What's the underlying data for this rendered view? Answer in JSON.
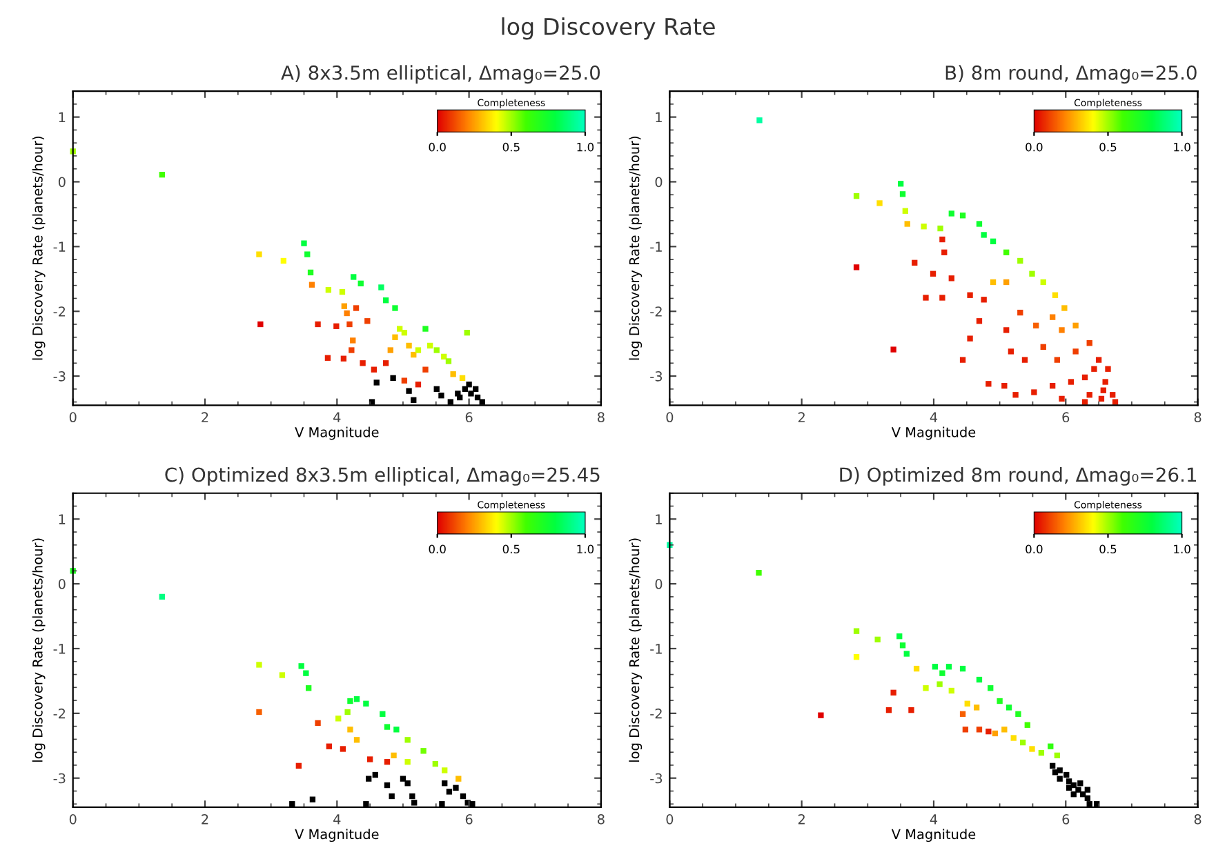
{
  "chart_data": [
    {
      "type": "scatter",
      "title": "A) 8x3.5m elliptical, Δmag₀=25.0",
      "annotations": [
        "log Discovery Rate"
      ],
      "xlabel": "V Magnitude",
      "ylabel": "log Discovery Rate (planets/hour)",
      "clabel": "Completeness",
      "clim": [
        0,
        1
      ],
      "cticks": [
        {
          "value": 0,
          "label": "0.0"
        },
        {
          "value": 0.5,
          "label": "0.5"
        },
        {
          "value": 1,
          "label": "1.0"
        }
      ],
      "xlim": [
        0,
        8
      ],
      "ylim": [
        -3.45,
        1.4
      ],
      "xticks": [
        0,
        2,
        4,
        6,
        8
      ],
      "yticks": [
        -3,
        -2,
        -1,
        0,
        1
      ],
      "grid": false,
      "marker": "square",
      "series": [
        {
          "x": [
            0,
            1.35,
            2.82,
            3.19,
            3.5,
            3.55,
            3.6,
            3.62,
            2.84,
            3.87,
            4.08,
            4.25,
            4.36,
            4.67,
            4.74,
            4.88,
            4.11,
            4.15,
            4.29,
            4.46,
            3.71,
            3.99,
            4.19,
            4.24,
            3.86,
            4.1,
            4.22,
            4.39,
            4.56,
            4.74,
            4.81,
            4.88,
            4.95,
            5.02,
            5.09,
            5.16,
            5.23,
            5.34,
            5.41,
            5.51,
            5.62,
            5.69,
            5.76,
            5.9,
            5.97,
            5.02,
            5.34,
            5.23,
            4.6,
            4.53,
            4.85,
            5.09,
            5.16,
            5.51,
            5.72,
            5.83,
            5.94,
            6.0,
            6.03,
            6.1,
            6.13,
            6.2,
            5.86,
            5.58
          ],
          "values": [
            0.47,
            0.11,
            -1.12,
            -1.22,
            -0.95,
            -1.12,
            -1.4,
            -1.59,
            -2.2,
            -1.67,
            -1.7,
            -1.47,
            -1.57,
            -1.63,
            -1.83,
            -1.95,
            -1.92,
            -2.03,
            -1.95,
            -2.15,
            -2.2,
            -2.23,
            -2.2,
            -2.45,
            -2.72,
            -2.73,
            -2.6,
            -2.8,
            -2.9,
            -2.8,
            -2.6,
            -2.4,
            -2.27,
            -2.33,
            -2.53,
            -2.67,
            -2.6,
            -2.27,
            -2.53,
            -2.6,
            -2.7,
            -2.77,
            -2.97,
            -3.03,
            -2.33,
            -3.07,
            -2.9,
            -3.13,
            -3.1,
            -3.4,
            -3.03,
            -3.23,
            -3.37,
            -3.2,
            -3.4,
            -3.27,
            -3.2,
            -3.13,
            -3.27,
            -3.2,
            -3.33,
            -3.4,
            -3.33,
            -3.3
          ],
          "cvalues": [
            0.5,
            0.6,
            0.35,
            0.4,
            0.8,
            0.75,
            0.7,
            0.2,
            0.0,
            0.45,
            0.45,
            0.8,
            0.75,
            0.85,
            0.8,
            0.75,
            0.25,
            0.2,
            0.1,
            0.1,
            0.05,
            0.05,
            0.1,
            0.2,
            0.05,
            0.05,
            0.1,
            0.05,
            0.05,
            0.05,
            0.25,
            0.3,
            0.45,
            0.45,
            0.3,
            0.3,
            0.45,
            0.7,
            0.45,
            0.5,
            0.45,
            0.5,
            0.3,
            0.35,
            0.5,
            0.1,
            0.1,
            0.05,
            null,
            null,
            null,
            null,
            null,
            null,
            null,
            null,
            null,
            null,
            null,
            null,
            null,
            null,
            null,
            null
          ]
        }
      ]
    },
    {
      "type": "scatter",
      "title": "B) 8m round, Δmag₀=25.0",
      "xlabel": "V Magnitude",
      "ylabel": "log Discovery Rate (planets/hour)",
      "clabel": "Completeness",
      "clim": [
        0,
        1
      ],
      "cticks": [
        {
          "value": 0,
          "label": "0.0"
        },
        {
          "value": 0.5,
          "label": "0.5"
        },
        {
          "value": 1,
          "label": "1.0"
        }
      ],
      "xlim": [
        0,
        8
      ],
      "ylim": [
        -3.45,
        1.4
      ],
      "xticks": [
        0,
        2,
        4,
        6,
        8
      ],
      "yticks": [
        -3,
        -2,
        -1,
        0,
        1
      ],
      "grid": false,
      "marker": "square",
      "series": [
        {
          "x": [
            1.36,
            2.83,
            3.18,
            3.5,
            3.53,
            3.57,
            3.6,
            3.85,
            4.1,
            4.27,
            4.44,
            4.69,
            4.76,
            4.9,
            5.1,
            5.31,
            5.49,
            5.66,
            5.84,
            5.98,
            6.15,
            6.36,
            6.5,
            6.6,
            6.71,
            6.29,
            2.83,
            3.39,
            4.13,
            4.16,
            3.71,
            3.99,
            4.27,
            3.88,
            4.13,
            4.55,
            4.76,
            4.9,
            5.1,
            4.69,
            5.1,
            5.31,
            5.55,
            5.8,
            5.94,
            4.55,
            5.17,
            5.38,
            5.66,
            5.87,
            6.15,
            4.44,
            4.83,
            5.07,
            5.24,
            5.52,
            5.8,
            6.08,
            6.29,
            6.43,
            6.57,
            5.94,
            6.64,
            6.36,
            6.54,
            6.75
          ],
          "values": [
            0.95,
            -0.22,
            -0.33,
            -0.03,
            -0.19,
            -0.45,
            -0.65,
            -0.69,
            -0.72,
            -0.49,
            -0.52,
            -0.65,
            -0.82,
            -0.92,
            -1.09,
            -1.22,
            -1.42,
            -1.55,
            -1.75,
            -1.95,
            -2.22,
            -2.49,
            -2.75,
            -3.09,
            -3.29,
            -3.4,
            -1.32,
            -2.59,
            -0.89,
            -1.09,
            -1.25,
            -1.42,
            -1.49,
            -1.79,
            -1.79,
            -1.75,
            -1.82,
            -1.55,
            -1.55,
            -2.15,
            -2.29,
            -2.02,
            -2.22,
            -2.09,
            -2.29,
            -2.42,
            -2.62,
            -2.75,
            -2.55,
            -2.75,
            -2.62,
            -2.75,
            -3.12,
            -3.15,
            -3.29,
            -3.25,
            -3.15,
            -3.09,
            -3.02,
            -2.89,
            -3.22,
            -3.35,
            -2.89,
            -3.29,
            -3.35,
            -3.4
          ],
          "cvalues": [
            0.95,
            0.5,
            0.35,
            0.8,
            0.75,
            0.45,
            0.3,
            0.45,
            0.5,
            0.75,
            0.7,
            0.75,
            0.8,
            0.8,
            0.6,
            0.5,
            0.5,
            0.45,
            0.35,
            0.3,
            0.25,
            0.1,
            0.05,
            0.05,
            0.05,
            0.05,
            0.0,
            0.0,
            0.05,
            0.05,
            0.05,
            0.05,
            0.05,
            0.05,
            0.05,
            0.05,
            0.05,
            0.3,
            0.25,
            0.05,
            0.05,
            0.1,
            0.15,
            0.2,
            0.2,
            0.05,
            0.05,
            0.05,
            0.1,
            0.1,
            0.1,
            0.05,
            0.05,
            0.05,
            0.05,
            0.05,
            0.05,
            0.05,
            0.05,
            0.05,
            0.05,
            0.05,
            0.05,
            0.05,
            0.05,
            0.05
          ]
        }
      ]
    },
    {
      "type": "scatter",
      "title": "C) Optimized 8x3.5m elliptical, Δmag₀=25.45",
      "xlabel": "V Magnitude",
      "ylabel": "log Discovery Rate (planets/hour)",
      "clabel": "Completeness",
      "clim": [
        0,
        1
      ],
      "cticks": [
        {
          "value": 0,
          "label": "0.0"
        },
        {
          "value": 0.5,
          "label": "0.5"
        },
        {
          "value": 1,
          "label": "1.0"
        }
      ],
      "xlim": [
        0,
        8
      ],
      "ylim": [
        -3.45,
        1.4
      ],
      "xticks": [
        0,
        2,
        4,
        6,
        8
      ],
      "yticks": [
        -3,
        -2,
        -1,
        0,
        1
      ],
      "grid": false,
      "marker": "square",
      "series": [
        {
          "x": [
            0,
            1.35,
            2.82,
            3.17,
            3.46,
            3.53,
            3.57,
            2.82,
            3.71,
            4.02,
            4.16,
            4.2,
            4.3,
            4.44,
            4.69,
            4.76,
            4.9,
            5.07,
            5.31,
            5.49,
            5.63,
            5.84,
            4.2,
            4.3,
            3.88,
            4.09,
            4.5,
            4.76,
            4.86,
            5.07,
            3.42,
            3.63,
            3.32,
            4.48,
            4.58,
            4.76,
            4.83,
            5.07,
            5.14,
            5.17,
            5.63,
            5.7,
            5.8,
            5.91,
            5.98,
            6.05,
            5.59,
            5.0,
            4.44
          ],
          "values": [
            0.2,
            -0.2,
            -1.25,
            -1.41,
            -1.27,
            -1.38,
            -1.61,
            -1.98,
            -2.15,
            -2.08,
            -1.98,
            -1.81,
            -1.78,
            -1.85,
            -2.01,
            -2.21,
            -2.25,
            -2.41,
            -2.58,
            -2.78,
            -2.88,
            -3.01,
            -2.25,
            -2.41,
            -2.51,
            -2.55,
            -2.71,
            -2.75,
            -2.65,
            -2.75,
            -2.81,
            -3.33,
            -3.4,
            -3.01,
            -2.95,
            -3.11,
            -3.28,
            -3.08,
            -3.28,
            -3.38,
            -3.08,
            -3.21,
            -3.15,
            -3.28,
            -3.38,
            -3.4,
            -3.4,
            -3.01,
            -3.4
          ],
          "cvalues": [
            0.7,
            0.9,
            0.45,
            0.45,
            0.8,
            0.8,
            0.7,
            0.15,
            0.1,
            0.45,
            0.5,
            0.75,
            0.8,
            0.8,
            0.8,
            0.75,
            0.8,
            0.5,
            0.55,
            0.5,
            0.45,
            0.3,
            0.3,
            0.3,
            0.05,
            0.05,
            0.05,
            0.05,
            0.3,
            0.45,
            0.05,
            null,
            null,
            null,
            null,
            null,
            null,
            null,
            null,
            null,
            null,
            null,
            null,
            null,
            null,
            null,
            null,
            null,
            null
          ]
        }
      ]
    },
    {
      "type": "scatter",
      "title": "D) Optimized 8m round, Δmag₀=26.1",
      "xlabel": "V Magnitude",
      "ylabel": "log Discovery Rate (planets/hour)",
      "clabel": "Completeness",
      "clim": [
        0,
        1
      ],
      "cticks": [
        {
          "value": 0,
          "label": "0.0"
        },
        {
          "value": 0.5,
          "label": "0.5"
        },
        {
          "value": 1,
          "label": "1.0"
        }
      ],
      "xlim": [
        0,
        8
      ],
      "ylim": [
        -3.45,
        1.4
      ],
      "xticks": [
        0,
        2,
        4,
        6,
        8
      ],
      "yticks": [
        -3,
        -2,
        -1,
        0,
        1
      ],
      "grid": false,
      "marker": "square",
      "series": [
        {
          "x": [
            0,
            1.35,
            2.83,
            2.83,
            3.15,
            3.48,
            3.53,
            3.59,
            2.29,
            3.39,
            3.32,
            3.66,
            3.74,
            3.88,
            4.02,
            4.13,
            4.23,
            4.09,
            4.27,
            4.44,
            4.69,
            4.86,
            5.0,
            5.14,
            5.28,
            5.42,
            4.51,
            4.65,
            4.44,
            4.48,
            4.69,
            4.83,
            4.93,
            5.07,
            5.21,
            5.35,
            5.49,
            5.63,
            5.77,
            5.87,
            5.8,
            5.91,
            5.98,
            6.05,
            6.12,
            6.19,
            6.26,
            6.33,
            6.4,
            6.47,
            5.91,
            6.01,
            6.12,
            6.22,
            6.33,
            5.84,
            6.05,
            6.36
          ],
          "values": [
            0.6,
            0.17,
            -0.73,
            -1.13,
            -0.86,
            -0.81,
            -0.95,
            -1.08,
            -2.03,
            -1.68,
            -1.95,
            -1.95,
            -1.31,
            -1.61,
            -1.28,
            -1.38,
            -1.28,
            -1.55,
            -1.65,
            -1.31,
            -1.48,
            -1.61,
            -1.81,
            -1.91,
            -2.01,
            -2.18,
            -1.85,
            -1.91,
            -2.01,
            -2.25,
            -2.25,
            -2.28,
            -2.31,
            -2.25,
            -2.38,
            -2.45,
            -2.55,
            -2.61,
            -2.51,
            -2.65,
            -2.81,
            -2.88,
            null,
            -3.05,
            -3.11,
            -3.18,
            -3.25,
            -3.31,
            null,
            -3.4,
            -3.01,
            -2.95,
            -3.25,
            -3.08,
            -3.18,
            -2.91,
            -3.15,
            -3.4
          ],
          "cvalues": [
            0.95,
            0.6,
            0.5,
            0.4,
            0.5,
            0.8,
            0.75,
            0.8,
            0.0,
            0.05,
            0.05,
            0.05,
            0.35,
            0.45,
            0.8,
            0.75,
            0.8,
            0.5,
            0.45,
            0.8,
            0.8,
            0.75,
            0.7,
            0.75,
            0.7,
            0.6,
            0.35,
            0.3,
            0.15,
            0.1,
            0.1,
            0.05,
            0.25,
            0.3,
            0.35,
            0.5,
            0.35,
            0.5,
            0.65,
            0.5,
            null,
            null,
            null,
            null,
            null,
            null,
            null,
            null,
            null,
            null,
            null,
            null,
            null,
            null,
            null,
            null,
            null,
            null
          ]
        }
      ]
    }
  ]
}
